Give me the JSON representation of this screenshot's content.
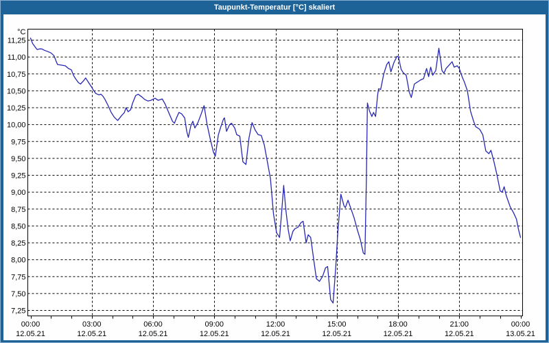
{
  "window": {
    "title": "Taupunkt-Temperatur [°C] skaliert"
  },
  "colors": {
    "titlebar": "#1D6397",
    "frame": "#1D6397",
    "plot_background": "#FFFFFF",
    "grid": "#000000",
    "line": "#2626B5"
  },
  "chart_data": {
    "type": "line",
    "title": "Taupunkt-Temperatur [°C] skaliert",
    "y_unit_label": "°C",
    "ylim": [
      7.25,
      11.25
    ],
    "y_tick_step": 0.25,
    "y_tick_labels": [
      "11,25",
      "11,00",
      "10,75",
      "10,50",
      "10,25",
      "10,00",
      "9,75",
      "9,50",
      "9,25",
      "9,00",
      "8,75",
      "8,50",
      "8,25",
      "8,00",
      "7,75",
      "7,50",
      "7,25"
    ],
    "x_hours_range": [
      0,
      24
    ],
    "x_minor_tick_every_hours": 1,
    "x_major_tick_every_hours": 3,
    "grid": "dashed",
    "legend": "none",
    "x_ticks": [
      {
        "time": "00:00",
        "date": "12.05.21"
      },
      {
        "time": "03:00",
        "date": "12.05.21"
      },
      {
        "time": "06:00",
        "date": "12.05.21"
      },
      {
        "time": "09:00",
        "date": "12.05.21"
      },
      {
        "time": "12:00",
        "date": "12.05.21"
      },
      {
        "time": "15:00",
        "date": "12.05.21"
      },
      {
        "time": "18:00",
        "date": "12.05.21"
      },
      {
        "time": "21:00",
        "date": "12.05.21"
      },
      {
        "time": "00:00",
        "date": "13.05.21"
      }
    ],
    "series": [
      {
        "name": "Taupunkt-Temperatur",
        "color": "#2626B5",
        "points": [
          [
            0.0,
            11.28
          ],
          [
            0.1,
            11.2
          ],
          [
            0.27,
            11.13
          ],
          [
            0.33,
            11.11
          ],
          [
            0.45,
            11.12
          ],
          [
            0.55,
            11.12
          ],
          [
            0.68,
            11.1
          ],
          [
            0.85,
            11.08
          ],
          [
            1.0,
            11.06
          ],
          [
            1.15,
            11.02
          ],
          [
            1.25,
            10.94
          ],
          [
            1.32,
            10.89
          ],
          [
            1.5,
            10.88
          ],
          [
            1.7,
            10.87
          ],
          [
            1.86,
            10.83
          ],
          [
            2.0,
            10.81
          ],
          [
            2.1,
            10.73
          ],
          [
            2.2,
            10.68
          ],
          [
            2.35,
            10.62
          ],
          [
            2.45,
            10.6
          ],
          [
            2.6,
            10.65
          ],
          [
            2.7,
            10.69
          ],
          [
            2.85,
            10.62
          ],
          [
            3.0,
            10.55
          ],
          [
            3.1,
            10.5
          ],
          [
            3.2,
            10.46
          ],
          [
            3.35,
            10.44
          ],
          [
            3.45,
            10.45
          ],
          [
            3.55,
            10.42
          ],
          [
            3.65,
            10.37
          ],
          [
            3.8,
            10.28
          ],
          [
            3.95,
            10.18
          ],
          [
            4.1,
            10.11
          ],
          [
            4.27,
            10.06
          ],
          [
            4.45,
            10.13
          ],
          [
            4.6,
            10.18
          ],
          [
            4.68,
            10.25
          ],
          [
            4.78,
            10.19
          ],
          [
            4.9,
            10.22
          ],
          [
            5.0,
            10.32
          ],
          [
            5.15,
            10.43
          ],
          [
            5.27,
            10.45
          ],
          [
            5.45,
            10.41
          ],
          [
            5.6,
            10.37
          ],
          [
            5.75,
            10.35
          ],
          [
            5.9,
            10.36
          ],
          [
            6.1,
            10.39
          ],
          [
            6.25,
            10.36
          ],
          [
            6.45,
            10.38
          ],
          [
            6.6,
            10.3
          ],
          [
            6.78,
            10.17
          ],
          [
            6.95,
            10.05
          ],
          [
            7.05,
            10.02
          ],
          [
            7.15,
            10.1
          ],
          [
            7.27,
            10.18
          ],
          [
            7.4,
            10.16
          ],
          [
            7.55,
            10.1
          ],
          [
            7.65,
            9.9
          ],
          [
            7.73,
            9.81
          ],
          [
            7.85,
            9.98
          ],
          [
            7.95,
            10.05
          ],
          [
            8.05,
            9.95
          ],
          [
            8.2,
            10.03
          ],
          [
            8.35,
            10.15
          ],
          [
            8.5,
            10.28
          ],
          [
            8.65,
            10.0
          ],
          [
            8.8,
            9.79
          ],
          [
            8.95,
            9.6
          ],
          [
            9.05,
            9.53
          ],
          [
            9.2,
            9.85
          ],
          [
            9.3,
            9.95
          ],
          [
            9.45,
            10.08
          ],
          [
            9.5,
            10.1
          ],
          [
            9.6,
            9.9
          ],
          [
            9.75,
            10.0
          ],
          [
            9.85,
            10.02
          ],
          [
            10.0,
            9.95
          ],
          [
            10.1,
            9.85
          ],
          [
            10.25,
            9.83
          ],
          [
            10.4,
            9.45
          ],
          [
            10.55,
            9.41
          ],
          [
            10.7,
            9.8
          ],
          [
            10.85,
            10.03
          ],
          [
            11.0,
            9.92
          ],
          [
            11.15,
            9.85
          ],
          [
            11.3,
            9.84
          ],
          [
            11.45,
            9.7
          ],
          [
            11.6,
            9.45
          ],
          [
            11.75,
            9.2
          ],
          [
            11.9,
            8.68
          ],
          [
            12.05,
            8.4
          ],
          [
            12.2,
            8.33
          ],
          [
            12.3,
            8.7
          ],
          [
            12.4,
            9.1
          ],
          [
            12.5,
            8.75
          ],
          [
            12.62,
            8.45
          ],
          [
            12.72,
            8.28
          ],
          [
            12.85,
            8.42
          ],
          [
            12.95,
            8.46
          ],
          [
            13.1,
            8.48
          ],
          [
            13.25,
            8.55
          ],
          [
            13.35,
            8.57
          ],
          [
            13.5,
            8.25
          ],
          [
            13.6,
            8.37
          ],
          [
            13.72,
            8.33
          ],
          [
            13.85,
            8.05
          ],
          [
            14.0,
            7.72
          ],
          [
            14.15,
            7.68
          ],
          [
            14.3,
            7.75
          ],
          [
            14.45,
            7.88
          ],
          [
            14.55,
            7.9
          ],
          [
            14.7,
            7.41
          ],
          [
            14.82,
            7.36
          ],
          [
            14.95,
            7.9
          ],
          [
            15.05,
            8.4
          ],
          [
            15.2,
            8.97
          ],
          [
            15.35,
            8.8
          ],
          [
            15.42,
            8.77
          ],
          [
            15.55,
            8.88
          ],
          [
            15.7,
            8.75
          ],
          [
            15.85,
            8.62
          ],
          [
            16.0,
            8.45
          ],
          [
            16.15,
            8.3
          ],
          [
            16.3,
            8.1
          ],
          [
            16.38,
            8.08
          ],
          [
            16.45,
            9.2
          ],
          [
            16.5,
            10.32
          ],
          [
            16.6,
            10.2
          ],
          [
            16.72,
            10.12
          ],
          [
            16.8,
            10.18
          ],
          [
            16.9,
            10.12
          ],
          [
            17.0,
            10.44
          ],
          [
            17.05,
            10.53
          ],
          [
            17.15,
            10.52
          ],
          [
            17.3,
            10.75
          ],
          [
            17.45,
            10.89
          ],
          [
            17.55,
            10.93
          ],
          [
            17.65,
            10.78
          ],
          [
            17.8,
            10.92
          ],
          [
            17.95,
            11.01
          ],
          [
            18.02,
            11.0
          ],
          [
            18.15,
            10.82
          ],
          [
            18.25,
            10.77
          ],
          [
            18.4,
            10.73
          ],
          [
            18.55,
            10.48
          ],
          [
            18.65,
            10.4
          ],
          [
            18.8,
            10.6
          ],
          [
            18.95,
            10.63
          ],
          [
            19.1,
            10.66
          ],
          [
            19.25,
            10.68
          ],
          [
            19.4,
            10.83
          ],
          [
            19.5,
            10.71
          ],
          [
            19.6,
            10.85
          ],
          [
            19.7,
            10.73
          ],
          [
            19.85,
            10.8
          ],
          [
            20.0,
            11.13
          ],
          [
            20.1,
            10.92
          ],
          [
            20.15,
            10.8
          ],
          [
            20.25,
            10.76
          ],
          [
            20.35,
            10.83
          ],
          [
            20.5,
            10.88
          ],
          [
            20.65,
            10.93
          ],
          [
            20.75,
            10.85
          ],
          [
            20.9,
            10.87
          ],
          [
            21.0,
            10.83
          ],
          [
            21.15,
            10.7
          ],
          [
            21.25,
            10.63
          ],
          [
            21.4,
            10.5
          ],
          [
            21.55,
            10.2
          ],
          [
            21.7,
            10.05
          ],
          [
            21.8,
            9.97
          ],
          [
            22.0,
            9.93
          ],
          [
            22.15,
            9.85
          ],
          [
            22.3,
            9.61
          ],
          [
            22.45,
            9.57
          ],
          [
            22.55,
            9.62
          ],
          [
            22.7,
            9.45
          ],
          [
            22.85,
            9.25
          ],
          [
            23.0,
            9.02
          ],
          [
            23.1,
            9.0
          ],
          [
            23.2,
            9.08
          ],
          [
            23.3,
            8.95
          ],
          [
            23.5,
            8.78
          ],
          [
            23.65,
            8.7
          ],
          [
            23.8,
            8.6
          ],
          [
            23.9,
            8.45
          ],
          [
            24.0,
            8.33
          ]
        ]
      }
    ]
  }
}
